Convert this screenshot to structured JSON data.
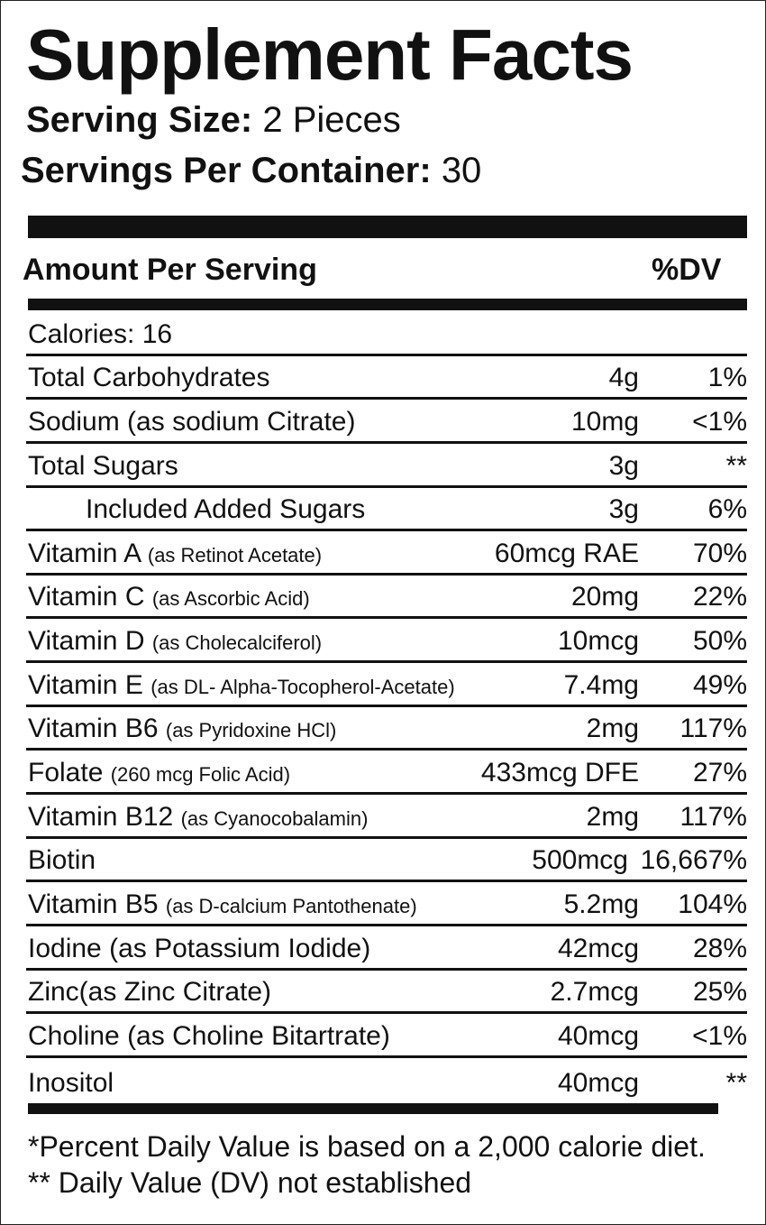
{
  "title": "Supplement Facts",
  "serving_size_label": "Serving Size:",
  "serving_size_value": "2 Pieces",
  "servings_per_container_label": "Servings Per Container:",
  "servings_per_container_value": "30",
  "header": {
    "amount_label": "Amount Per Serving",
    "dv_label": "%DV"
  },
  "calories": {
    "label": "Calories: 16"
  },
  "nutrients": [
    {
      "name": "Total Carbohydrates",
      "sub": "",
      "amount": "4g",
      "dv": "1%"
    },
    {
      "name": "Sodium (as sodium Citrate)",
      "sub": "",
      "amount": "10mg",
      "dv": "<1%"
    },
    {
      "name": "Total Sugars",
      "sub": "",
      "amount": "3g",
      "dv": "**"
    },
    {
      "name": "Included Added Sugars",
      "sub": "",
      "amount": "3g",
      "dv": "6%"
    },
    {
      "name": "Vitamin A",
      "sub": "(as Retinot Acetate)",
      "amount": "60mcg RAE",
      "dv": "70%"
    },
    {
      "name": "Vitamin C",
      "sub": "(as Ascorbic Acid)",
      "amount": "20mg",
      "dv": "22%"
    },
    {
      "name": "Vitamin D",
      "sub": "(as Cholecalciferol)",
      "amount": "10mcg",
      "dv": "50%"
    },
    {
      "name": "Vitamin E",
      "sub": "(as DL- Alpha-Tocopherol-Acetate)",
      "amount": "7.4mg",
      "dv": "49%"
    },
    {
      "name": "Vitamin B6",
      "sub": "(as Pyridoxine HCl)",
      "amount": "2mg",
      "dv": "117%"
    },
    {
      "name": "Folate",
      "sub": "(260 mcg Folic Acid)",
      "amount": "433mcg DFE",
      "dv": "27%"
    },
    {
      "name": "Vitamin B12",
      "sub": "(as Cyanocobalamin)",
      "amount": "2mg",
      "dv": "117%"
    },
    {
      "name": "Biotin",
      "sub": "",
      "amount": "500mcg",
      "dv": "16,667%"
    },
    {
      "name": "Vitamin B5",
      "sub": "(as D-calcium Pantothenate)",
      "amount": "5.2mg",
      "dv": "104%"
    },
    {
      "name": "Iodine (as Potassium Iodide)",
      "sub": "",
      "amount": "42mcg",
      "dv": "28%"
    },
    {
      "name": "Zinc(as Zinc Citrate)",
      "sub": "",
      "amount": "2.7mcg",
      "dv": "25%"
    },
    {
      "name": "Choline (as Choline Bitartrate)",
      "sub": "",
      "amount": "40mcg",
      "dv": "<1%"
    },
    {
      "name": "Inositol",
      "sub": "",
      "amount": "40mcg",
      "dv": "**"
    }
  ],
  "footnotes": {
    "percent_dv": "*Percent Daily Value is based on a 2,000 calorie diet.",
    "not_established": "** Daily Value (DV) not established"
  }
}
